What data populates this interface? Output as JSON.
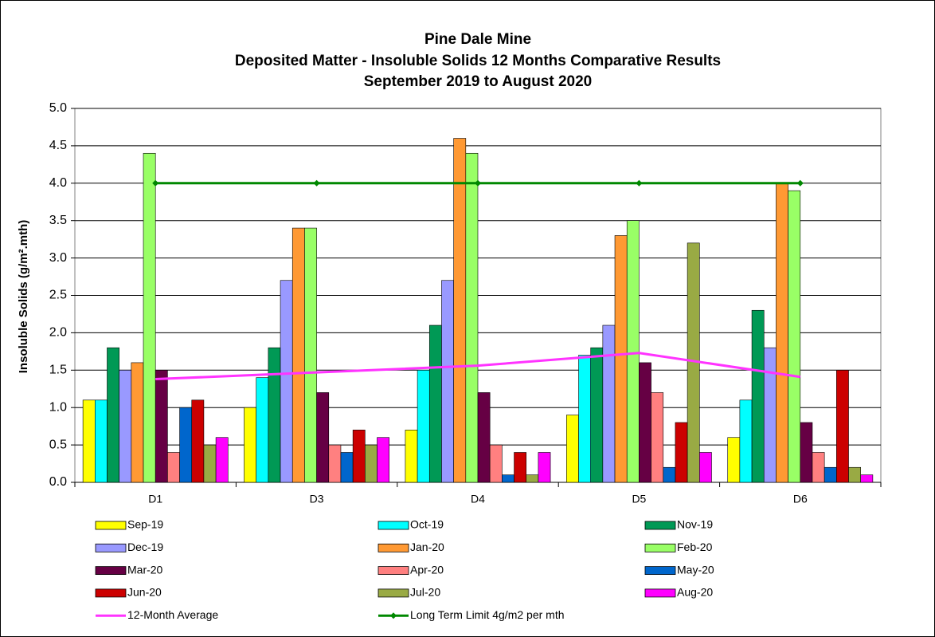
{
  "chart_data": {
    "type": "bar",
    "title": [
      "Pine Dale Mine",
      "Deposited Matter - Insoluble Solids 12 Months Comparative Results",
      "September 2019 to August 2020"
    ],
    "y_label": "Insoluble Solids (g/m².mth)",
    "categories": [
      "D1",
      "D3",
      "D4",
      "D5",
      "D6"
    ],
    "ylim": [
      0,
      5
    ],
    "yticks": [
      {
        "value": 0,
        "label": "0.0"
      },
      0.5,
      {
        "value": 1,
        "label": "1.0"
      },
      1.5,
      {
        "value": 2,
        "label": "2.0"
      },
      2.5,
      {
        "value": 3,
        "label": "3.0"
      },
      3.5,
      {
        "value": 4,
        "label": "4.0"
      },
      4.5,
      {
        "value": 5,
        "label": "5.0"
      }
    ],
    "grid": true,
    "series": [
      {
        "name": "Sep-19",
        "color": "#ffff00",
        "values": [
          1.1,
          1.0,
          0.7,
          0.9,
          0.6
        ]
      },
      {
        "name": "Oct-19",
        "color": "#00ffff",
        "values": [
          1.1,
          1.4,
          1.5,
          1.7,
          1.1
        ]
      },
      {
        "name": "Nov-19",
        "color": "#009955",
        "values": [
          1.8,
          1.8,
          2.1,
          1.8,
          2.3
        ]
      },
      {
        "name": "Dec-19",
        "color": "#9999ff",
        "values": [
          1.5,
          2.7,
          2.7,
          2.1,
          1.8
        ]
      },
      {
        "name": "Jan-20",
        "color": "#ff9933",
        "values": [
          1.6,
          3.4,
          4.6,
          3.3,
          4.0
        ]
      },
      {
        "name": "Feb-20",
        "color": "#99ff66",
        "values": [
          4.4,
          3.4,
          4.4,
          3.5,
          3.9
        ]
      },
      {
        "name": "Mar-20",
        "color": "#660044",
        "values": [
          1.5,
          1.2,
          1.2,
          1.6,
          0.8
        ]
      },
      {
        "name": "Apr-20",
        "color": "#ff8080",
        "values": [
          0.4,
          0.5,
          0.5,
          1.2,
          0.4
        ]
      },
      {
        "name": "May-20",
        "color": "#0066cc",
        "values": [
          1.0,
          0.4,
          0.1,
          0.2,
          0.2
        ]
      },
      {
        "name": "Jun-20",
        "color": "#cc0000",
        "values": [
          1.1,
          0.7,
          0.4,
          0.8,
          1.5
        ]
      },
      {
        "name": "Jul-20",
        "color": "#99aa44",
        "values": [
          0.5,
          0.5,
          0.1,
          3.2,
          0.2
        ]
      },
      {
        "name": "Aug-20",
        "color": "#ff00ff",
        "values": [
          0.6,
          0.6,
          0.4,
          0.4,
          0.1
        ]
      }
    ],
    "lines": [
      {
        "name": "12-Month Average",
        "color": "#ff33ff",
        "markers": false,
        "values": [
          1.38,
          1.47,
          1.56,
          1.73,
          1.41
        ]
      },
      {
        "name": "Long Term Limit 4g/m2 per mth",
        "color": "#008800",
        "markers": true,
        "values": [
          4,
          4,
          4,
          4,
          4
        ]
      }
    ]
  }
}
